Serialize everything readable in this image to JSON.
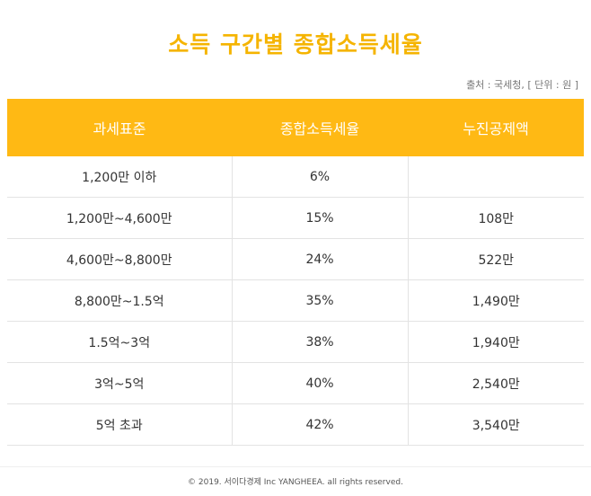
{
  "title": "소득 구간별 종합소득세율",
  "source": "출처 : 국세청, [ 단위 : 원 ]",
  "table": {
    "headers": [
      "과세표준",
      "종합소득세율",
      "누진공제액"
    ],
    "rows": [
      [
        "1,200만 이하",
        "6%",
        ""
      ],
      [
        "1,200만~4,600만",
        "15%",
        "108만"
      ],
      [
        "4,600만~8,800만",
        "24%",
        "522만"
      ],
      [
        "8,800만~1.5억",
        "35%",
        "1,490만"
      ],
      [
        "1.5억~3억",
        "38%",
        "1,940만"
      ],
      [
        "3억~5억",
        "40%",
        "2,540만"
      ],
      [
        "5억 초과",
        "42%",
        "3,540만"
      ]
    ]
  },
  "footer": "© 2019. 서이다경제 Inc YANGHEEA. all rights reserved.",
  "colors": {
    "accent": "#ffb914",
    "title": "#f5b400"
  }
}
